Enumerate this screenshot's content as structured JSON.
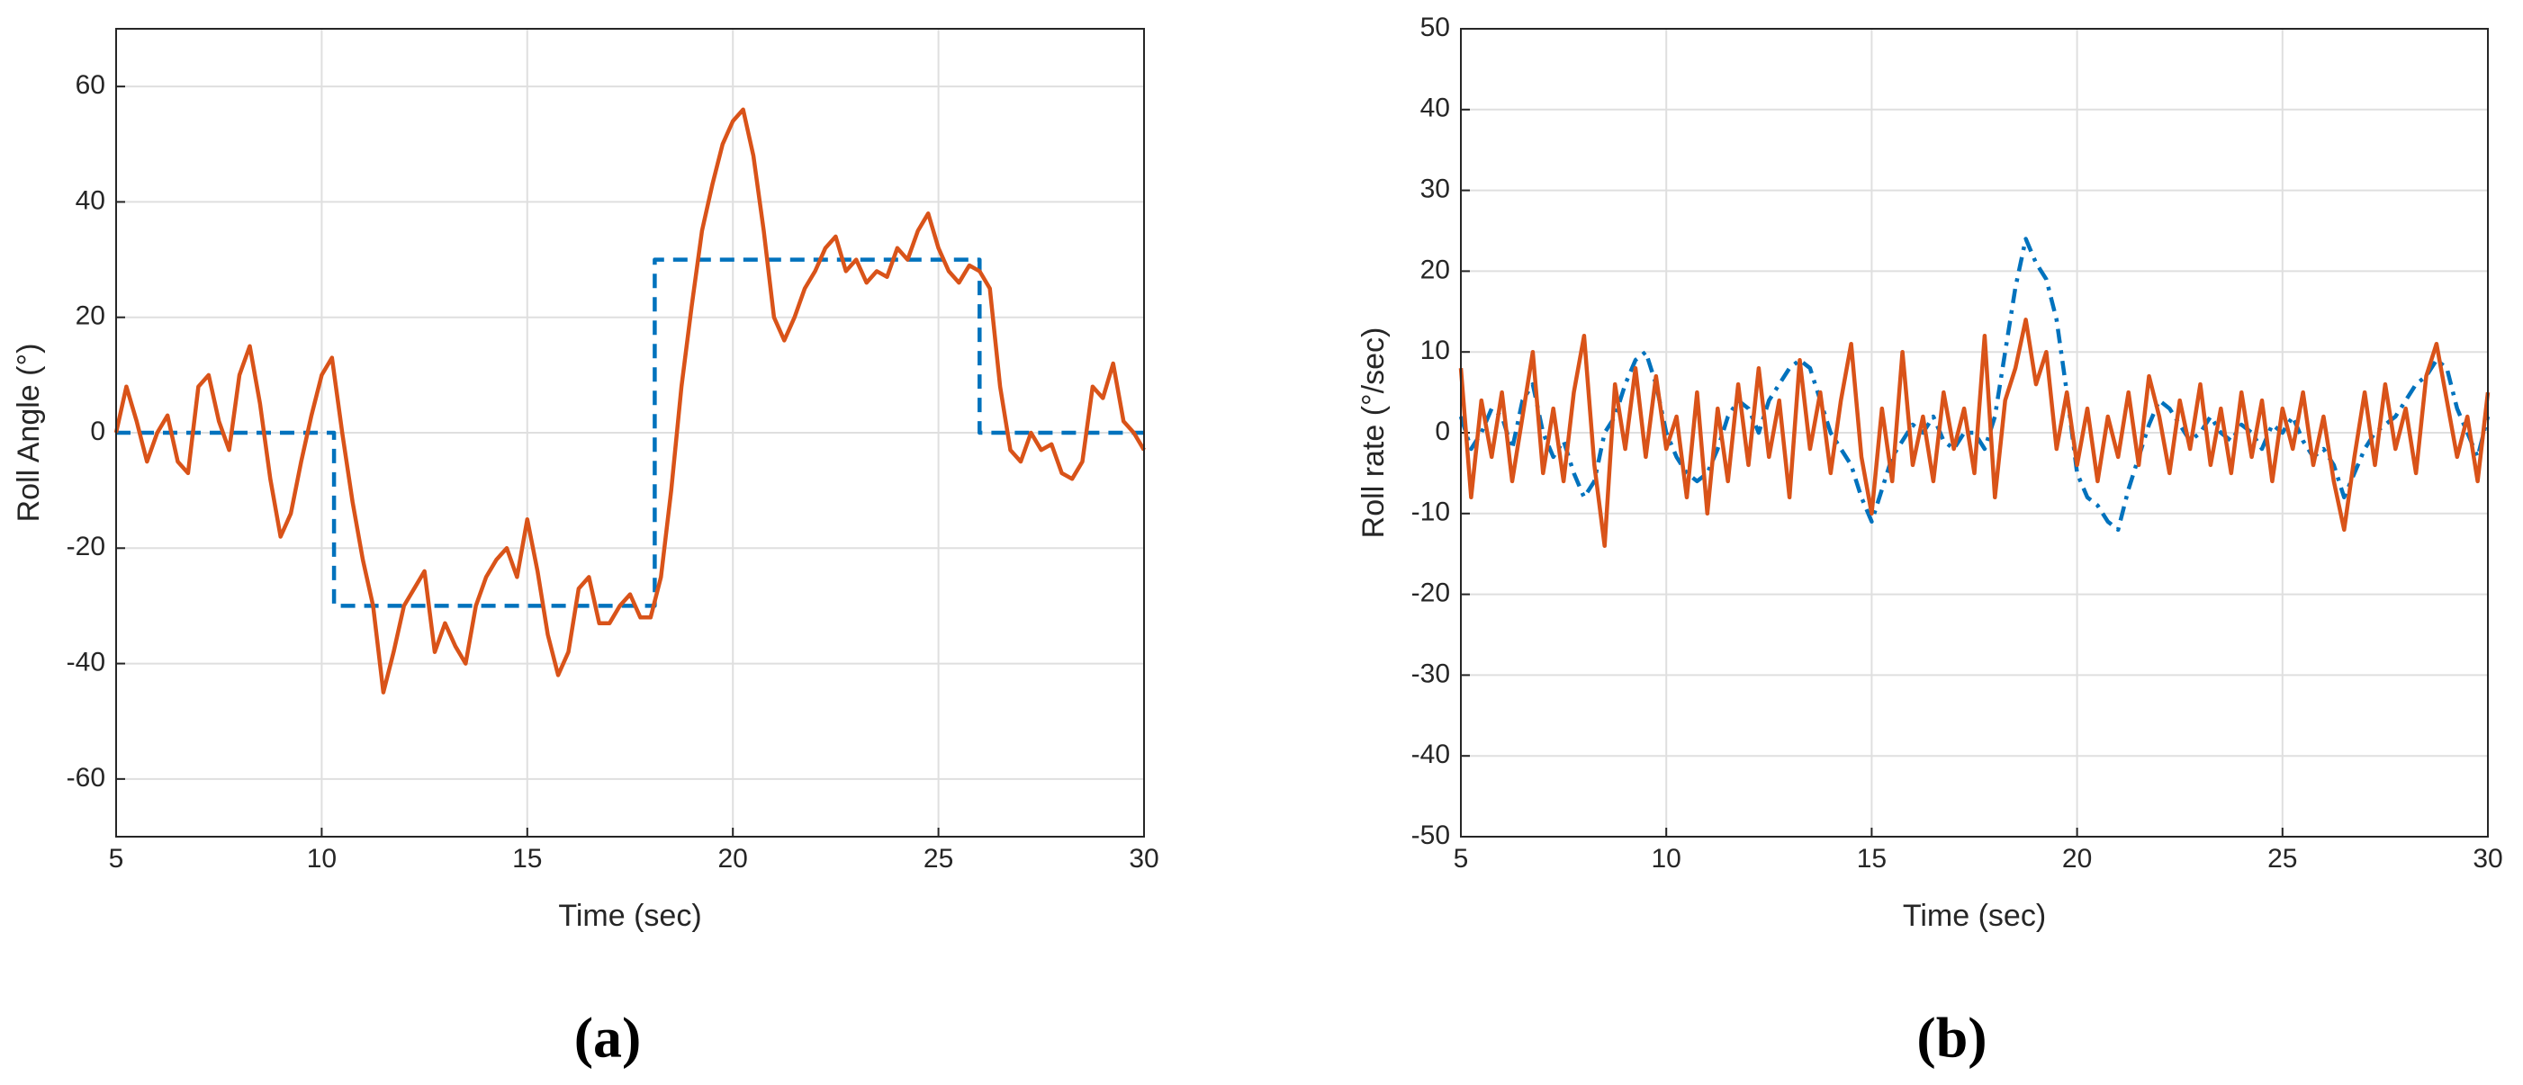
{
  "chart_data": [
    {
      "type": "line",
      "caption": "(a)",
      "xlabel": "Time (sec)",
      "ylabel": "Roll Angle (°)",
      "xlim": [
        5,
        30
      ],
      "xticks": [
        5,
        10,
        15,
        20,
        25,
        30
      ],
      "ylim": [
        -70,
        70
      ],
      "yticks": [
        -60,
        -40,
        -20,
        0,
        20,
        40,
        60
      ],
      "grid": true,
      "series": [
        {
          "color": "#0072BD",
          "style": "dashed",
          "x": [
            5,
            10.3,
            10.3,
            18.1,
            18.1,
            26,
            26,
            30
          ],
          "values": [
            0,
            0,
            -30,
            -30,
            30,
            30,
            0,
            0
          ]
        },
        {
          "color": "#D95319",
          "style": "solid",
          "x": [
            5,
            5.25,
            5.5,
            5.75,
            6,
            6.25,
            6.5,
            6.75,
            7,
            7.25,
            7.5,
            7.75,
            8,
            8.25,
            8.5,
            8.75,
            9,
            9.25,
            9.5,
            9.75,
            10,
            10.25,
            10.5,
            10.75,
            11,
            11.25,
            11.5,
            11.75,
            12,
            12.25,
            12.5,
            12.75,
            13,
            13.25,
            13.5,
            13.75,
            14,
            14.25,
            14.5,
            14.75,
            15,
            15.25,
            15.5,
            15.75,
            16,
            16.25,
            16.5,
            16.75,
            17,
            17.25,
            17.5,
            17.75,
            18,
            18.25,
            18.5,
            18.75,
            19,
            19.25,
            19.5,
            19.75,
            20,
            20.25,
            20.5,
            20.75,
            21,
            21.25,
            21.5,
            21.75,
            22,
            22.25,
            22.5,
            22.75,
            23,
            23.25,
            23.5,
            23.75,
            24,
            24.25,
            24.5,
            24.75,
            25,
            25.25,
            25.5,
            25.75,
            26,
            26.25,
            26.5,
            26.75,
            27,
            27.25,
            27.5,
            27.75,
            28,
            28.25,
            28.5,
            28.75,
            29,
            29.25,
            29.5,
            29.75,
            30
          ],
          "values": [
            0,
            8,
            2,
            -5,
            0,
            3,
            -5,
            -7,
            8,
            10,
            2,
            -3,
            10,
            15,
            5,
            -8,
            -18,
            -14,
            -5,
            3,
            10,
            13,
            0,
            -12,
            -22,
            -30,
            -45,
            -38,
            -30,
            -27,
            -24,
            -38,
            -33,
            -37,
            -40,
            -30,
            -25,
            -22,
            -20,
            -25,
            -15,
            -24,
            -35,
            -42,
            -38,
            -27,
            -25,
            -33,
            -33,
            -30,
            -28,
            -32,
            -32,
            -25,
            -10,
            8,
            22,
            35,
            43,
            50,
            54,
            56,
            48,
            35,
            20,
            16,
            20,
            25,
            28,
            32,
            34,
            28,
            30,
            26,
            28,
            27,
            32,
            30,
            35,
            38,
            32,
            28,
            26,
            29,
            28,
            25,
            8,
            -3,
            -5,
            0,
            -3,
            -2,
            -7,
            -8,
            -5,
            8,
            6,
            12,
            2,
            0,
            -3
          ]
        }
      ]
    },
    {
      "type": "line",
      "caption": "(b)",
      "xlabel": "Time (sec)",
      "ylabel": "Roll rate (°/sec)",
      "xlim": [
        5,
        30
      ],
      "xticks": [
        5,
        10,
        15,
        20,
        25,
        30
      ],
      "ylim": [
        -50,
        50
      ],
      "yticks": [
        -50,
        -40,
        -30,
        -20,
        -10,
        0,
        10,
        20,
        30,
        40,
        50
      ],
      "grid": true,
      "series": [
        {
          "color": "#0072BD",
          "style": "dashdot",
          "x": [
            5,
            5.25,
            5.5,
            5.75,
            6,
            6.25,
            6.5,
            6.75,
            7,
            7.25,
            7.5,
            7.75,
            8,
            8.25,
            8.5,
            8.75,
            9,
            9.25,
            9.5,
            9.75,
            10,
            10.25,
            10.5,
            10.75,
            11,
            11.25,
            11.5,
            11.75,
            12,
            12.25,
            12.5,
            12.75,
            13,
            13.25,
            13.5,
            13.75,
            14,
            14.25,
            14.5,
            14.75,
            15,
            15.25,
            15.5,
            15.75,
            16,
            16.25,
            16.5,
            16.75,
            17,
            17.25,
            17.5,
            17.75,
            18,
            18.25,
            18.5,
            18.75,
            19,
            19.25,
            19.5,
            19.75,
            20,
            20.25,
            20.5,
            20.75,
            21,
            21.25,
            21.5,
            21.75,
            22,
            22.25,
            22.5,
            22.75,
            23,
            23.25,
            23.5,
            23.75,
            24,
            24.25,
            24.5,
            24.75,
            25,
            25.25,
            25.5,
            25.75,
            26,
            26.25,
            26.5,
            26.75,
            27,
            27.25,
            27.5,
            27.75,
            28,
            28.25,
            28.5,
            28.75,
            29,
            29.25,
            29.5,
            29.75,
            30
          ],
          "values": [
            2,
            -2,
            0,
            3,
            2,
            -2,
            4,
            6,
            0,
            -3,
            -1,
            -5,
            -8,
            -6,
            0,
            2,
            6,
            9,
            10,
            6,
            0,
            -3,
            -5,
            -6,
            -5,
            -2,
            2,
            4,
            3,
            0,
            4,
            6,
            8,
            9,
            8,
            4,
            0,
            -2,
            -4,
            -8,
            -11,
            -7,
            -3,
            -1,
            1,
            0,
            2,
            -1,
            -2,
            0,
            0,
            -2,
            2,
            10,
            18,
            24,
            21,
            19,
            14,
            5,
            -5,
            -8,
            -9,
            -11,
            -12,
            -7,
            -3,
            1,
            4,
            3,
            1,
            -1,
            0,
            2,
            0,
            -1,
            1,
            0,
            -2,
            1,
            0,
            2,
            -1,
            -3,
            -2,
            -4,
            -8,
            -5,
            -2,
            0,
            1,
            2,
            4,
            6,
            7,
            9,
            8,
            3,
            0,
            -3,
            2
          ]
        },
        {
          "color": "#D95319",
          "style": "solid",
          "x": [
            5,
            5.25,
            5.5,
            5.75,
            6,
            6.25,
            6.5,
            6.75,
            7,
            7.25,
            7.5,
            7.75,
            8,
            8.25,
            8.5,
            8.75,
            9,
            9.25,
            9.5,
            9.75,
            10,
            10.25,
            10.5,
            10.75,
            11,
            11.25,
            11.5,
            11.75,
            12,
            12.25,
            12.5,
            12.75,
            13,
            13.25,
            13.5,
            13.75,
            14,
            14.25,
            14.5,
            14.75,
            15,
            15.25,
            15.5,
            15.75,
            16,
            16.25,
            16.5,
            16.75,
            17,
            17.25,
            17.5,
            17.75,
            18,
            18.25,
            18.5,
            18.75,
            19,
            19.25,
            19.5,
            19.75,
            20,
            20.25,
            20.5,
            20.75,
            21,
            21.25,
            21.5,
            21.75,
            22,
            22.25,
            22.5,
            22.75,
            23,
            23.25,
            23.5,
            23.75,
            24,
            24.25,
            24.5,
            24.75,
            25,
            25.25,
            25.5,
            25.75,
            26,
            26.25,
            26.5,
            26.75,
            27,
            27.25,
            27.5,
            27.75,
            28,
            28.25,
            28.5,
            28.75,
            29,
            29.25,
            29.5,
            29.75,
            30
          ],
          "values": [
            8,
            -8,
            4,
            -3,
            5,
            -6,
            2,
            10,
            -5,
            3,
            -6,
            5,
            12,
            -4,
            -14,
            6,
            -2,
            8,
            -3,
            7,
            -2,
            2,
            -8,
            5,
            -10,
            3,
            -6,
            6,
            -4,
            8,
            -3,
            4,
            -8,
            9,
            -2,
            5,
            -5,
            4,
            11,
            -3,
            -10,
            3,
            -6,
            10,
            -4,
            2,
            -6,
            5,
            -2,
            3,
            -5,
            12,
            -8,
            4,
            8,
            14,
            6,
            10,
            -2,
            5,
            -4,
            3,
            -6,
            2,
            -3,
            5,
            -4,
            7,
            2,
            -5,
            4,
            -2,
            6,
            -4,
            3,
            -5,
            5,
            -3,
            4,
            -6,
            3,
            -2,
            5,
            -4,
            2,
            -6,
            -12,
            -3,
            5,
            -4,
            6,
            -2,
            3,
            -5,
            7,
            11,
            4,
            -3,
            2,
            -6,
            5
          ]
        }
      ]
    }
  ]
}
